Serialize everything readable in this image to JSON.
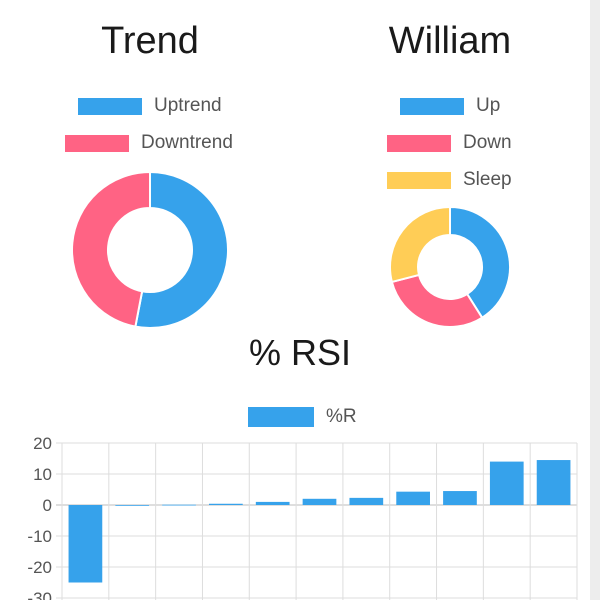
{
  "chart_data": [
    {
      "type": "pie",
      "variant": "doughnut",
      "title": "Trend",
      "legend_position": "top",
      "categories": [
        "Uptrend",
        "Downtrend"
      ],
      "values": [
        53,
        47
      ],
      "colors": [
        "#36a2eb",
        "#ff6384"
      ]
    },
    {
      "type": "pie",
      "variant": "doughnut",
      "title": "William",
      "legend_position": "top",
      "categories": [
        "Up",
        "Down",
        "Sleep"
      ],
      "values": [
        41,
        30,
        29
      ],
      "colors": [
        "#36a2eb",
        "#ff6384",
        "#ffcd56"
      ]
    },
    {
      "type": "bar",
      "title": "% RSI",
      "legend_position": "top",
      "series": [
        {
          "name": "%R",
          "color": "#36a2eb",
          "values": [
            -25,
            0,
            0.1,
            0.4,
            1,
            2,
            2.3,
            4.3,
            4.5,
            14,
            14.5
          ]
        }
      ],
      "ylim": [
        -30,
        20
      ],
      "yticks": [
        20,
        10,
        0,
        -10,
        -20,
        -30
      ],
      "grid": true
    }
  ]
}
